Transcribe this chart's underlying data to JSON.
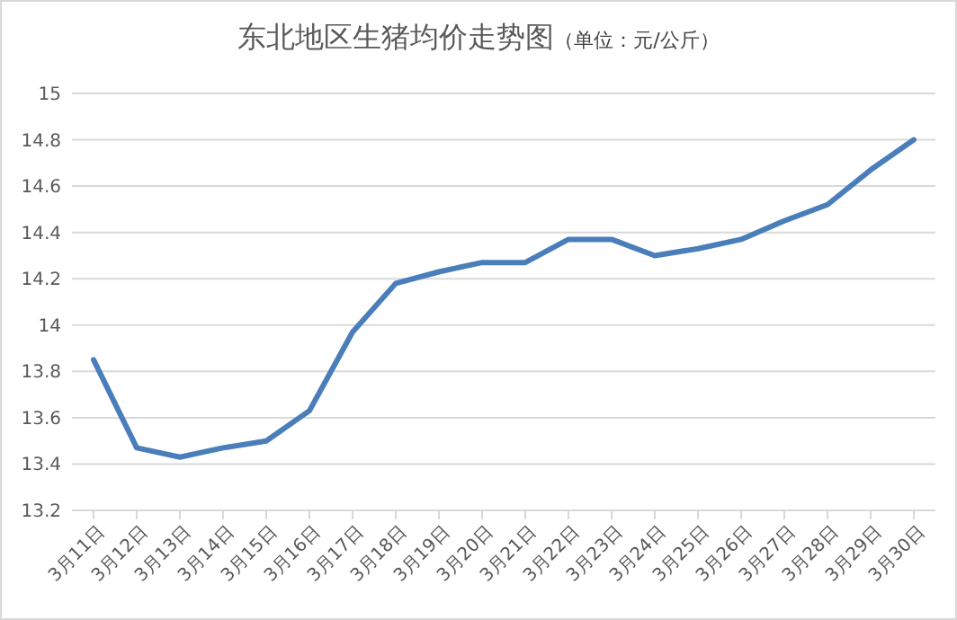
{
  "chart_data": {
    "type": "line",
    "title": "东北地区生猪均价走势图",
    "subtitle": "（单位：元/公斤）",
    "categories": [
      "3月11日",
      "3月12日",
      "3月13日",
      "3月14日",
      "3月15日",
      "3月16日",
      "3月17日",
      "3月18日",
      "3月19日",
      "3月20日",
      "3月21日",
      "3月22日",
      "3月23日",
      "3月24日",
      "3月25日",
      "3月26日",
      "3月27日",
      "3月28日",
      "3月29日",
      "3月30日"
    ],
    "series": [
      {
        "color": "#4a7ebb",
        "values": [
          13.85,
          13.47,
          13.43,
          13.47,
          13.5,
          13.63,
          13.97,
          14.18,
          14.23,
          14.27,
          14.27,
          14.37,
          14.37,
          14.3,
          14.33,
          14.37,
          14.45,
          14.52,
          14.67,
          14.8
        ]
      }
    ],
    "ylim": [
      13.2,
      15
    ],
    "yticks": [
      13.2,
      13.4,
      13.6,
      13.8,
      14,
      14.2,
      14.4,
      14.6,
      14.8,
      15
    ],
    "grid": "y",
    "marker": "none",
    "line_style": "solid"
  }
}
